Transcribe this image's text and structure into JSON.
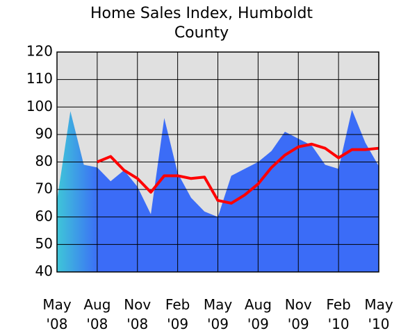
{
  "chart_data": {
    "type": "area",
    "title": "Home Sales Index, Humboldt County",
    "categories": [
      "May '08",
      null,
      null,
      "Aug '08",
      null,
      null,
      "Nov '08",
      null,
      null,
      "Feb '09",
      null,
      null,
      "May '09",
      null,
      null,
      "Aug '09",
      null,
      null,
      "Nov '09",
      null,
      null,
      "Feb '10",
      null,
      null,
      "May '10"
    ],
    "series": [
      {
        "type": "area",
        "color": "#3b6cf7",
        "values": [
          66,
          98.5,
          79,
          78,
          73,
          77,
          71,
          61,
          96,
          76,
          67,
          62,
          60,
          75,
          77.5,
          80,
          84,
          91,
          88.5,
          86,
          79,
          77.5,
          99,
          87,
          78.5
        ]
      },
      {
        "type": "line",
        "color": "#ff0000",
        "values": [
          null,
          null,
          null,
          80,
          82,
          77,
          74,
          69,
          75,
          75,
          74,
          74.5,
          66,
          65,
          68,
          72,
          78,
          82.5,
          85.5,
          86.5,
          85,
          81.5,
          84.5,
          84.5,
          85
        ]
      }
    ],
    "ylim": [
      40,
      120
    ],
    "yticks": [
      40,
      50,
      60,
      70,
      80,
      90,
      100,
      110,
      120
    ],
    "grid": true
  }
}
